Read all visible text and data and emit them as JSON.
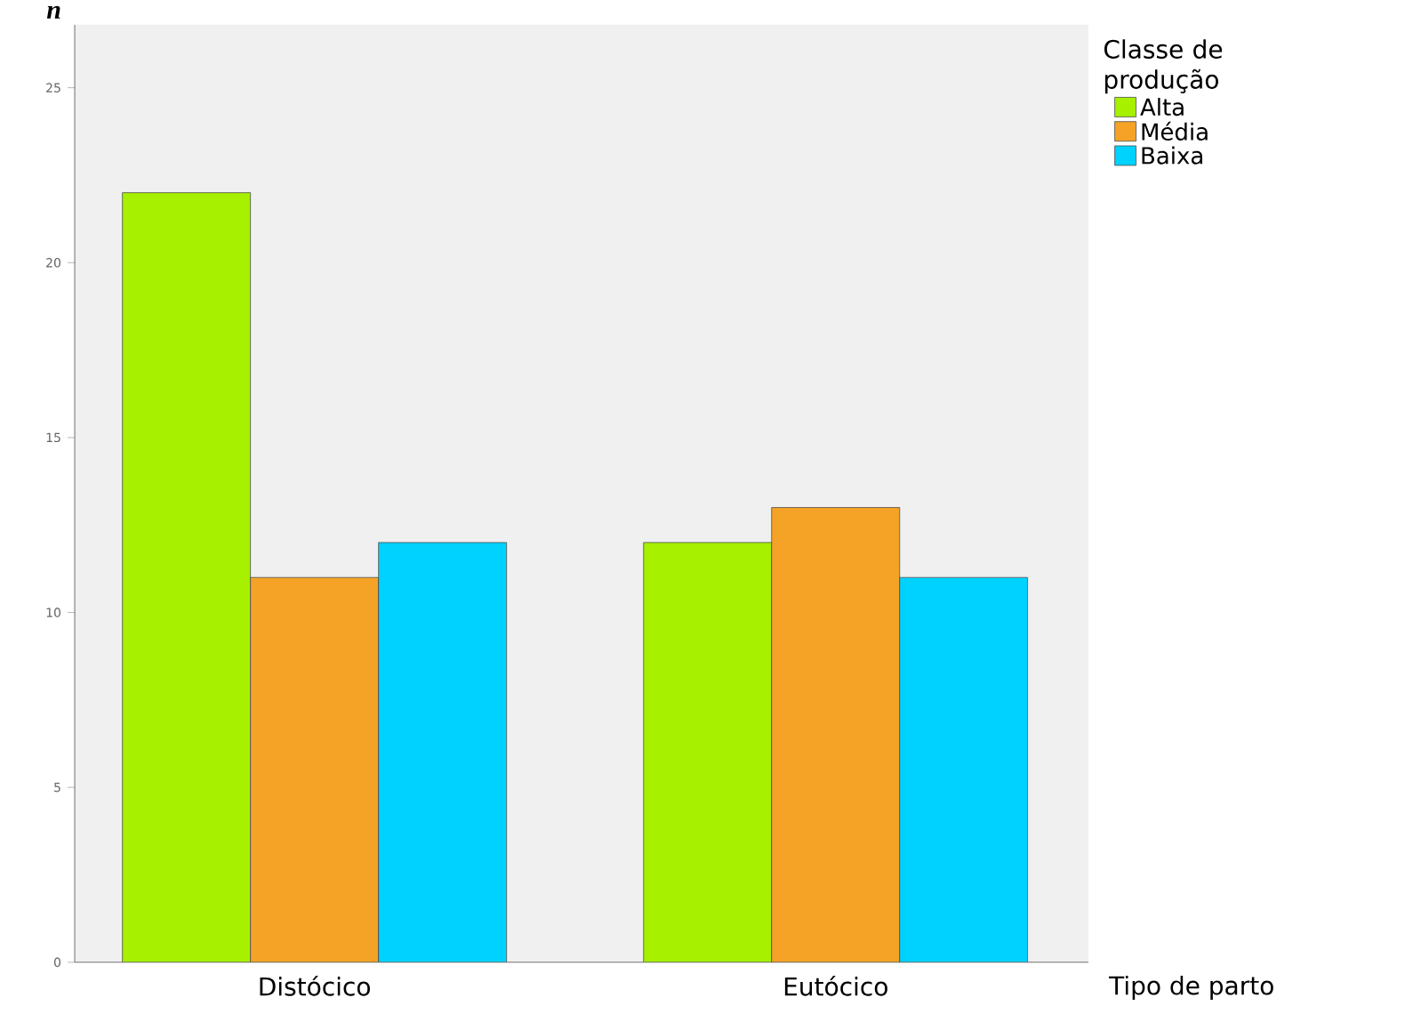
{
  "chart_data": {
    "type": "bar",
    "xlabel": "Tipo de parto",
    "ylabel": "n",
    "legend_title": "Classe de produção",
    "categories": [
      "Distócico",
      "Eutócico"
    ],
    "series": [
      {
        "name": "Alta",
        "color": "#a6f000",
        "values": [
          22,
          12
        ]
      },
      {
        "name": "Média",
        "color": "#f5a326",
        "values": [
          11,
          13
        ]
      },
      {
        "name": "Baixa",
        "color": "#00d2ff",
        "values": [
          12,
          11
        ]
      }
    ],
    "ylim": [
      0,
      26.8
    ],
    "yticks": [
      0,
      5,
      10,
      15,
      20,
      25
    ],
    "grid": false,
    "legend": "top right"
  }
}
